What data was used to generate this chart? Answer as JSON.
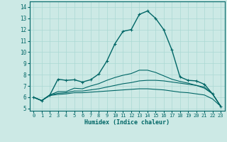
{
  "title": "",
  "xlabel": "Humidex (Indice chaleur)",
  "ylabel": "",
  "background_color": "#cce9e5",
  "grid_color": "#aad8d3",
  "line_color": "#006666",
  "xlim": [
    -0.5,
    23.5
  ],
  "ylim": [
    4.8,
    14.5
  ],
  "xticks": [
    0,
    1,
    2,
    3,
    4,
    5,
    6,
    7,
    8,
    9,
    10,
    11,
    12,
    13,
    14,
    15,
    16,
    17,
    18,
    19,
    20,
    21,
    22,
    23
  ],
  "yticks": [
    5,
    6,
    7,
    8,
    9,
    10,
    11,
    12,
    13,
    14
  ],
  "curves": [
    {
      "x": [
        0,
        1,
        2,
        3,
        4,
        5,
        6,
        7,
        8,
        9,
        10,
        11,
        12,
        13,
        14,
        15,
        16,
        17,
        18,
        19,
        20,
        21,
        22,
        23
      ],
      "y": [
        6.0,
        5.7,
        6.2,
        7.6,
        7.5,
        7.55,
        7.35,
        7.55,
        8.05,
        9.2,
        10.75,
        11.85,
        12.0,
        13.35,
        13.65,
        13.0,
        12.0,
        10.2,
        7.8,
        7.5,
        7.45,
        7.15,
        6.3,
        5.2
      ],
      "marker": "+"
    },
    {
      "x": [
        0,
        1,
        2,
        3,
        4,
        5,
        6,
        7,
        8,
        9,
        10,
        11,
        12,
        13,
        14,
        15,
        16,
        17,
        18,
        19,
        20,
        21,
        22,
        23
      ],
      "y": [
        6.0,
        5.7,
        6.2,
        6.5,
        6.5,
        6.8,
        6.75,
        7.0,
        7.2,
        7.5,
        7.75,
        7.95,
        8.1,
        8.4,
        8.4,
        8.2,
        7.9,
        7.6,
        7.4,
        7.25,
        7.05,
        6.8,
        6.3,
        5.2
      ],
      "marker": null
    },
    {
      "x": [
        0,
        1,
        2,
        3,
        4,
        5,
        6,
        7,
        8,
        9,
        10,
        11,
        12,
        13,
        14,
        15,
        16,
        17,
        18,
        19,
        20,
        21,
        22,
        23
      ],
      "y": [
        6.0,
        5.7,
        6.2,
        6.35,
        6.4,
        6.55,
        6.55,
        6.65,
        6.75,
        6.9,
        7.05,
        7.2,
        7.3,
        7.45,
        7.5,
        7.5,
        7.45,
        7.35,
        7.25,
        7.15,
        7.05,
        6.9,
        6.3,
        5.2
      ],
      "marker": null
    },
    {
      "x": [
        0,
        1,
        2,
        3,
        4,
        5,
        6,
        7,
        8,
        9,
        10,
        11,
        12,
        13,
        14,
        15,
        16,
        17,
        18,
        19,
        20,
        21,
        22,
        23
      ],
      "y": [
        6.0,
        5.7,
        6.15,
        6.25,
        6.3,
        6.4,
        6.4,
        6.45,
        6.5,
        6.55,
        6.6,
        6.65,
        6.7,
        6.75,
        6.75,
        6.7,
        6.65,
        6.55,
        6.45,
        6.4,
        6.3,
        6.2,
        5.85,
        5.2
      ],
      "marker": null
    }
  ]
}
